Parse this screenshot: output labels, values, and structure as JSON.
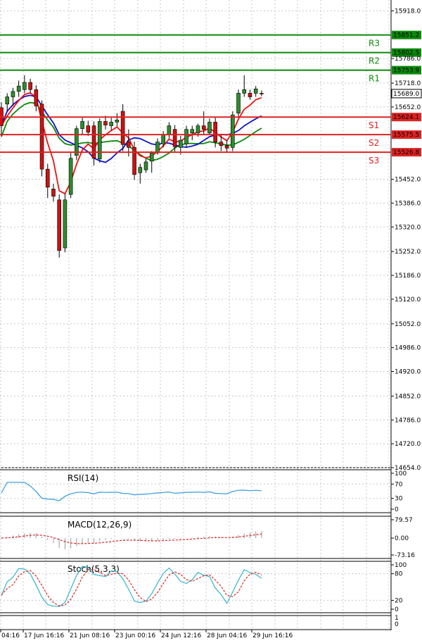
{
  "chart_data": {
    "type": "candlestick",
    "price_ticks": [
      "15918.0",
      "15786.0",
      "15718.0",
      "15652.0",
      "15452.0",
      "15386.0",
      "15320.0",
      "15252.0",
      "15186.0",
      "15120.0",
      "15052.0",
      "14986.0",
      "14920.0",
      "14852.0",
      "14786.0",
      "14720.0",
      "14654.0"
    ],
    "price_range": [
      14654,
      15948
    ],
    "levels": [
      {
        "name": "R3",
        "value": 15851.2,
        "label": "15851.2",
        "kind": "resistance"
      },
      {
        "name": "R2",
        "value": 15802.5,
        "label": "15802.5",
        "kind": "resistance"
      },
      {
        "name": "R1",
        "value": 15753.9,
        "label": "15753.9",
        "kind": "resistance"
      },
      {
        "name": "S1",
        "value": 15624.1,
        "label": "15624.1",
        "kind": "support"
      },
      {
        "name": "S2",
        "value": 15575.5,
        "label": "15575.5",
        "kind": "support"
      },
      {
        "name": "S3",
        "value": 15526.8,
        "label": "15526.8",
        "kind": "support"
      }
    ],
    "current_price": {
      "value": 15689.0,
      "label": "15689.0"
    },
    "x_labels": [
      "04:16",
      "17 Jun 16:16",
      "21 Jun 08:16",
      "23 Jun 00:16",
      "24 Jun 12:16",
      "28 Jun 04:16",
      "29 Jun 16:16"
    ],
    "candles": [
      {
        "o": 15650,
        "h": 15665,
        "l": 15570,
        "c": 15600
      },
      {
        "o": 15660,
        "h": 15690,
        "l": 15640,
        "c": 15680
      },
      {
        "o": 15680,
        "h": 15705,
        "l": 15655,
        "c": 15695
      },
      {
        "o": 15695,
        "h": 15725,
        "l": 15680,
        "c": 15710
      },
      {
        "o": 15700,
        "h": 15740,
        "l": 15690,
        "c": 15720
      },
      {
        "o": 15720,
        "h": 15730,
        "l": 15690,
        "c": 15700
      },
      {
        "o": 15700,
        "h": 15712,
        "l": 15640,
        "c": 15655
      },
      {
        "o": 15660,
        "h": 15670,
        "l": 15460,
        "c": 15480
      },
      {
        "o": 15480,
        "h": 15495,
        "l": 15400,
        "c": 15430
      },
      {
        "o": 15425,
        "h": 15440,
        "l": 15390,
        "c": 15405
      },
      {
        "o": 15395,
        "h": 15410,
        "l": 15235,
        "c": 15255
      },
      {
        "o": 15262,
        "h": 15412,
        "l": 15250,
        "c": 15395
      },
      {
        "o": 15410,
        "h": 15525,
        "l": 15400,
        "c": 15510
      },
      {
        "o": 15518,
        "h": 15600,
        "l": 15505,
        "c": 15592
      },
      {
        "o": 15592,
        "h": 15625,
        "l": 15575,
        "c": 15612
      },
      {
        "o": 15600,
        "h": 15614,
        "l": 15572,
        "c": 15582
      },
      {
        "o": 15600,
        "h": 15612,
        "l": 15490,
        "c": 15510
      },
      {
        "o": 15508,
        "h": 15620,
        "l": 15498,
        "c": 15612
      },
      {
        "o": 15612,
        "h": 15628,
        "l": 15590,
        "c": 15602
      },
      {
        "o": 15600,
        "h": 15622,
        "l": 15588,
        "c": 15610
      },
      {
        "o": 15610,
        "h": 15635,
        "l": 15598,
        "c": 15616
      },
      {
        "o": 15640,
        "h": 15660,
        "l": 15530,
        "c": 15548
      },
      {
        "o": 15555,
        "h": 15590,
        "l": 15515,
        "c": 15540
      },
      {
        "o": 15540,
        "h": 15556,
        "l": 15450,
        "c": 15465
      },
      {
        "o": 15470,
        "h": 15495,
        "l": 15440,
        "c": 15485
      },
      {
        "o": 15478,
        "h": 15508,
        "l": 15470,
        "c": 15500
      },
      {
        "o": 15502,
        "h": 15530,
        "l": 15470,
        "c": 15525
      },
      {
        "o": 15525,
        "h": 15565,
        "l": 15520,
        "c": 15555
      },
      {
        "o": 15550,
        "h": 15585,
        "l": 15540,
        "c": 15575
      },
      {
        "o": 15575,
        "h": 15610,
        "l": 15565,
        "c": 15600
      },
      {
        "o": 15590,
        "h": 15602,
        "l": 15528,
        "c": 15542
      },
      {
        "o": 15540,
        "h": 15572,
        "l": 15520,
        "c": 15560
      },
      {
        "o": 15550,
        "h": 15600,
        "l": 15540,
        "c": 15590
      },
      {
        "o": 15580,
        "h": 15600,
        "l": 15560,
        "c": 15590
      },
      {
        "o": 15580,
        "h": 15606,
        "l": 15570,
        "c": 15600
      },
      {
        "o": 15600,
        "h": 15640,
        "l": 15575,
        "c": 15590
      },
      {
        "o": 15580,
        "h": 15620,
        "l": 15575,
        "c": 15610
      },
      {
        "o": 15610,
        "h": 15625,
        "l": 15540,
        "c": 15555
      },
      {
        "o": 15555,
        "h": 15575,
        "l": 15530,
        "c": 15545
      },
      {
        "o": 15545,
        "h": 15560,
        "l": 15525,
        "c": 15538
      },
      {
        "o": 15540,
        "h": 15640,
        "l": 15530,
        "c": 15630
      },
      {
        "o": 15635,
        "h": 15700,
        "l": 15625,
        "c": 15690
      },
      {
        "o": 15690,
        "h": 15740,
        "l": 15680,
        "c": 15700
      },
      {
        "o": 15690,
        "h": 15700,
        "l": 15672,
        "c": 15680
      },
      {
        "o": 15690,
        "h": 15710,
        "l": 15680,
        "c": 15702
      },
      {
        "o": 15690,
        "h": 15698,
        "l": 15682,
        "c": 15689
      }
    ],
    "indicators": {
      "rsi": {
        "label": "RSI(14)",
        "ticks": [
          "100",
          "70",
          "30",
          "0"
        ],
        "range": [
          0,
          100
        ]
      },
      "macd": {
        "label": "MACD(12,26,9)",
        "ticks": [
          "79.57",
          "0.00",
          "-73.16"
        ],
        "range": [
          -73.16,
          79.57
        ]
      },
      "stoch": {
        "label": "Stoch(5,3,3)",
        "ticks": [
          "100",
          "80",
          "20",
          "0"
        ],
        "range": [
          0,
          100
        ]
      }
    },
    "bottom_panel_ticks": [
      "1",
      "0"
    ],
    "colors": {
      "bull": "#2e8b2e",
      "bear": "#cc1111",
      "resistance": "#0a8a0a",
      "support": "#dd2222",
      "ma_fast": "#ee1111",
      "ma_mid": "#1111cc",
      "ma_slow": "#0a8a0a",
      "rsi_line": "#3399dd",
      "stoch_main": "#33b5c9",
      "stoch_signal": "#dd2222",
      "macd_hist": "#999999",
      "macd_signal": "#dd2222"
    }
  }
}
